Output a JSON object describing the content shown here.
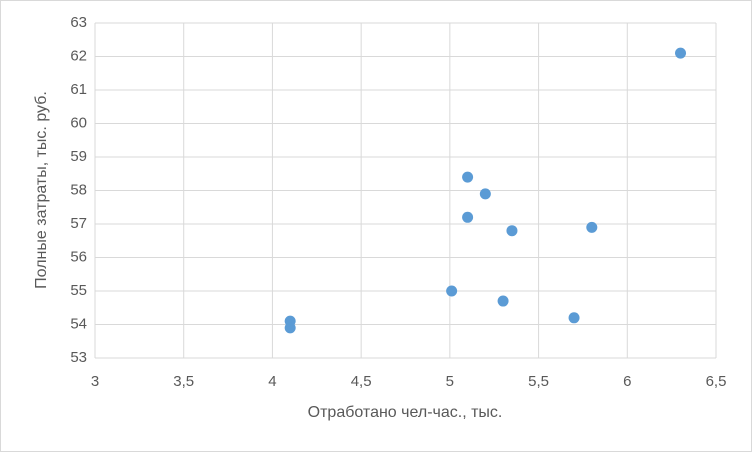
{
  "chart_data": {
    "type": "scatter",
    "x_label": "Отработано чел-час., тыс.",
    "y_label": "Полные затраты, тыс. руб.",
    "color": "#5b9bd5",
    "grid": true,
    "x": [
      6.3,
      5.1,
      5.2,
      5.1,
      5.35,
      5.8,
      5.01,
      5.3,
      5.7,
      4.1,
      4.1
    ],
    "y": [
      62.1,
      58.4,
      57.9,
      57.2,
      56.8,
      56.9,
      55.0,
      54.7,
      54.2,
      54.1,
      53.9
    ],
    "xlim": [
      3,
      6.5
    ],
    "xticks": [
      3,
      {
        "value": 3.5,
        "label": "3,5"
      },
      4,
      {
        "value": 4.5,
        "label": "4,5"
      },
      5,
      {
        "value": 5.5,
        "label": "5,5"
      },
      6,
      {
        "value": 6.5,
        "label": "6,5"
      }
    ],
    "ylim": [
      53,
      63
    ],
    "yticks": [
      53,
      54,
      55,
      56,
      57,
      58,
      59,
      60,
      61,
      62,
      63
    ]
  }
}
